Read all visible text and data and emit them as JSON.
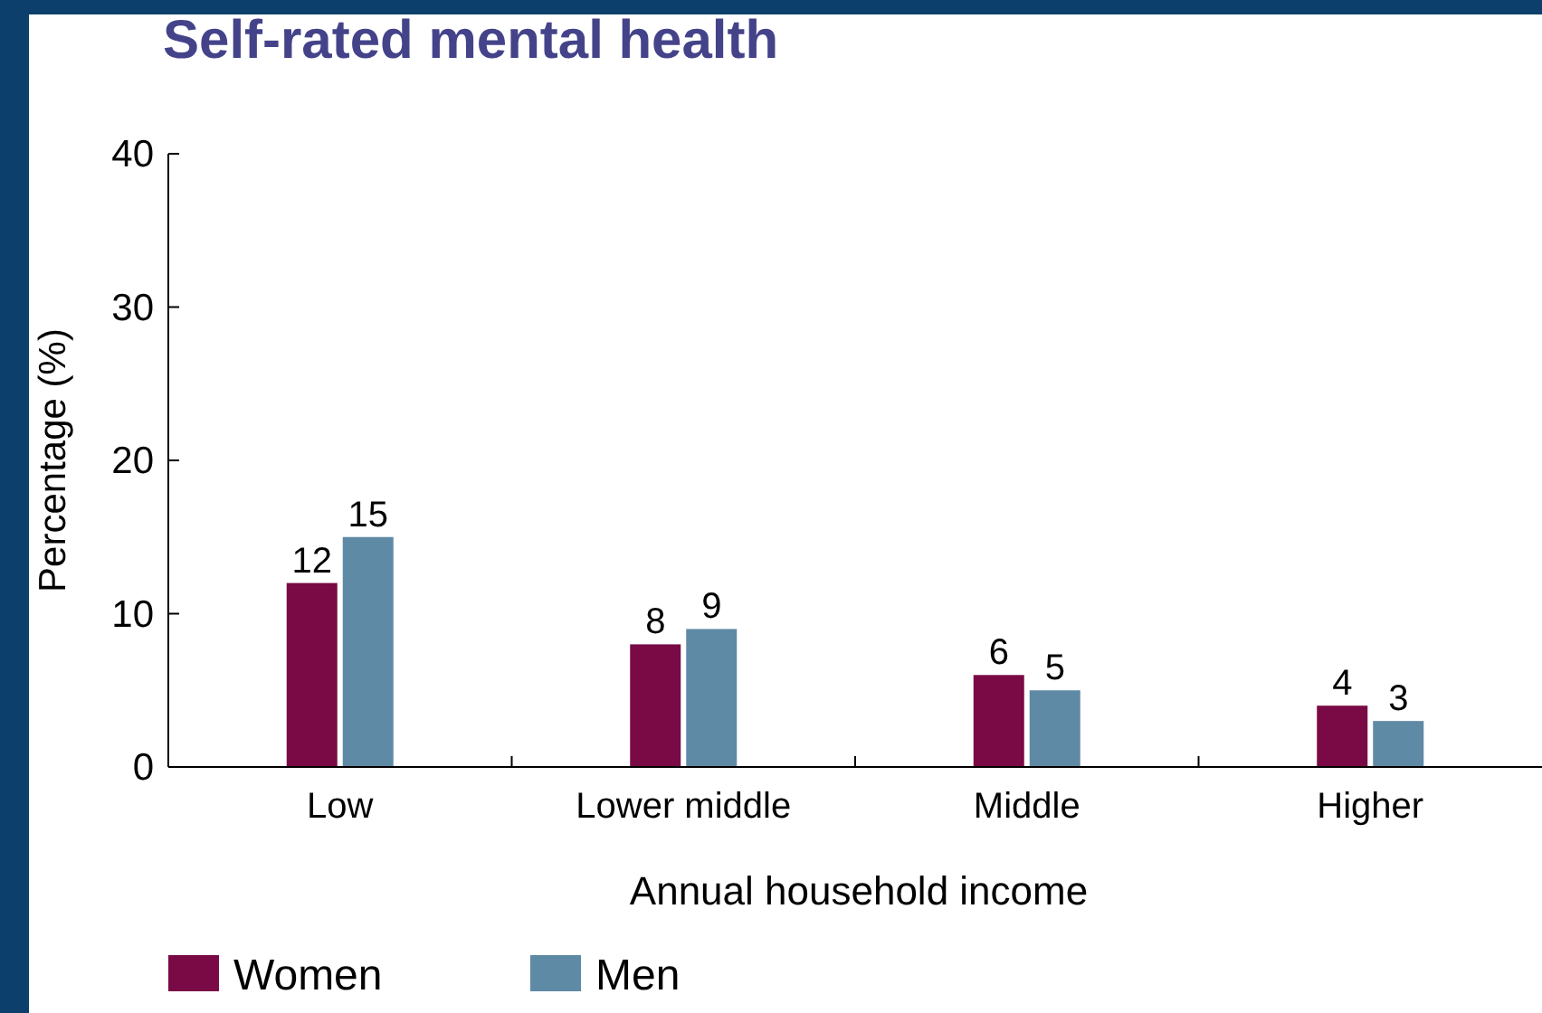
{
  "chart_data": {
    "type": "bar",
    "title": "Self-rated mental health",
    "xlabel": "Annual household income",
    "ylabel": "Percentage (%)",
    "categories": [
      "Low",
      "Lower middle",
      "Middle",
      "Higher"
    ],
    "series": [
      {
        "name": "Women",
        "color": "#7a0a46",
        "values": [
          12,
          8,
          6,
          4
        ]
      },
      {
        "name": "Men",
        "color": "#5f8aa6",
        "values": [
          15,
          9,
          5,
          3
        ]
      }
    ],
    "ylim": [
      0,
      40
    ],
    "yticks": [
      0,
      10,
      20,
      30,
      40
    ],
    "data_labels": true,
    "legend": "bottom left"
  }
}
